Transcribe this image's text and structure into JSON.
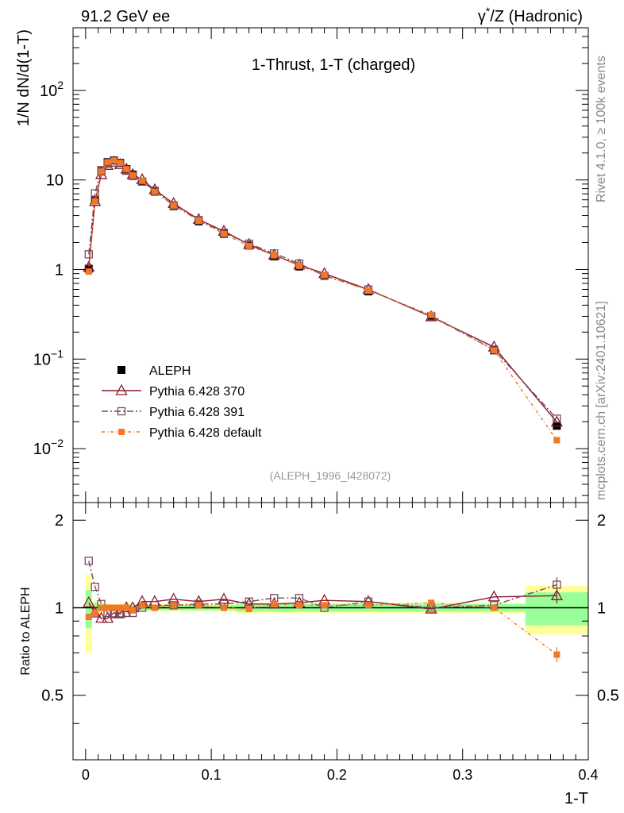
{
  "header": {
    "left": "91.2 GeV ee",
    "right_prefix": "γ",
    "right_sup": "*",
    "right_suffix": "/Z (Hadronic)"
  },
  "side_text": {
    "rivet": "Rivet 4.1.0, ≥ 100k events",
    "mcplots": "mcplots.cern.ch [arXiv:2401.10621]"
  },
  "chart_data": {
    "type": "line",
    "title": "1-Thrust, 1-T (charged)",
    "ylabel": "1/N  dN/d(1-T)",
    "xlabel": "1-T",
    "ratio_ylabel": "Ratio to ALEPH",
    "analysis_tag": "(ALEPH_1996_I428072)",
    "xlim": [
      -0.01,
      0.4
    ],
    "ylim": [
      0.0025,
      500
    ],
    "ratio_ylim": [
      0.3,
      2.3
    ],
    "x_ticks": [
      "0",
      "0.1",
      "0.2",
      "0.3",
      "0.4"
    ],
    "y_ticks": [
      {
        "value": 0.01,
        "base": "10",
        "exp": "−2"
      },
      {
        "value": 0.1,
        "base": "10",
        "exp": "−1"
      },
      {
        "value": 1,
        "base": "1",
        "exp": ""
      },
      {
        "value": 10,
        "base": "10",
        "exp": ""
      },
      {
        "value": 100,
        "base": "10",
        "exp": "2"
      }
    ],
    "ratio_ticks": [
      "0.5",
      "1",
      "2"
    ],
    "x": [
      0.0025,
      0.0075,
      0.0125,
      0.0175,
      0.0225,
      0.0275,
      0.0325,
      0.0375,
      0.045,
      0.055,
      0.07,
      0.09,
      0.11,
      0.13,
      0.15,
      0.17,
      0.19,
      0.225,
      0.275,
      0.325,
      0.375
    ],
    "bin_edges": [
      0.0,
      0.005,
      0.01,
      0.015,
      0.02,
      0.025,
      0.03,
      0.035,
      0.04,
      0.05,
      0.06,
      0.08,
      0.1,
      0.12,
      0.14,
      0.16,
      0.18,
      0.2,
      0.25,
      0.3,
      0.35,
      0.4
    ],
    "data": {
      "name": "ALEPH",
      "values": [
        1.02,
        6.0,
        12.5,
        15.8,
        16.5,
        15.5,
        13.2,
        11.5,
        9.6,
        7.4,
        5.1,
        3.45,
        2.5,
        1.85,
        1.4,
        1.08,
        0.85,
        0.57,
        0.3,
        0.125,
        0.018
      ],
      "band_inner": [
        0.15,
        0.04,
        0.03,
        0.02,
        0.02,
        0.02,
        0.02,
        0.02,
        0.02,
        0.02,
        0.02,
        0.02,
        0.02,
        0.03,
        0.03,
        0.03,
        0.03,
        0.03,
        0.03,
        0.03,
        0.13
      ],
      "band_outer": [
        0.3,
        0.06,
        0.04,
        0.03,
        0.03,
        0.03,
        0.03,
        0.03,
        0.03,
        0.03,
        0.03,
        0.03,
        0.03,
        0.04,
        0.04,
        0.04,
        0.04,
        0.04,
        0.04,
        0.04,
        0.19
      ]
    },
    "series": [
      {
        "name": "Pythia 6.428 370",
        "color": "#8B1A2E",
        "marker": "triangle",
        "dash": "",
        "ratio": [
          1.04,
          0.96,
          0.92,
          0.92,
          0.96,
          0.96,
          1.0,
          1.0,
          1.05,
          1.05,
          1.07,
          1.05,
          1.07,
          1.03,
          1.03,
          1.04,
          1.06,
          1.05,
          0.99,
          1.09,
          1.1
        ]
      },
      {
        "name": "Pythia 6.428 391",
        "color": "#7A4A5E",
        "marker": "square-open",
        "dash": "8,3,2,3",
        "ratio": [
          1.45,
          1.18,
          1.03,
          0.96,
          0.95,
          0.95,
          0.96,
          0.96,
          1.0,
          1.02,
          1.02,
          1.03,
          1.03,
          1.05,
          1.08,
          1.08,
          1.0,
          1.05,
          1.0,
          1.02,
          1.2
        ]
      },
      {
        "name": "Pythia 6.428 default",
        "color": "#F07828",
        "marker": "square-filled",
        "dash": "4,3,1,3",
        "ratio": [
          0.93,
          0.96,
          1.0,
          1.0,
          1.0,
          1.0,
          1.0,
          0.98,
          1.02,
          1.0,
          1.02,
          1.02,
          1.0,
          0.99,
          1.03,
          1.02,
          1.02,
          1.02,
          1.04,
          1.0,
          0.69
        ]
      }
    ]
  }
}
